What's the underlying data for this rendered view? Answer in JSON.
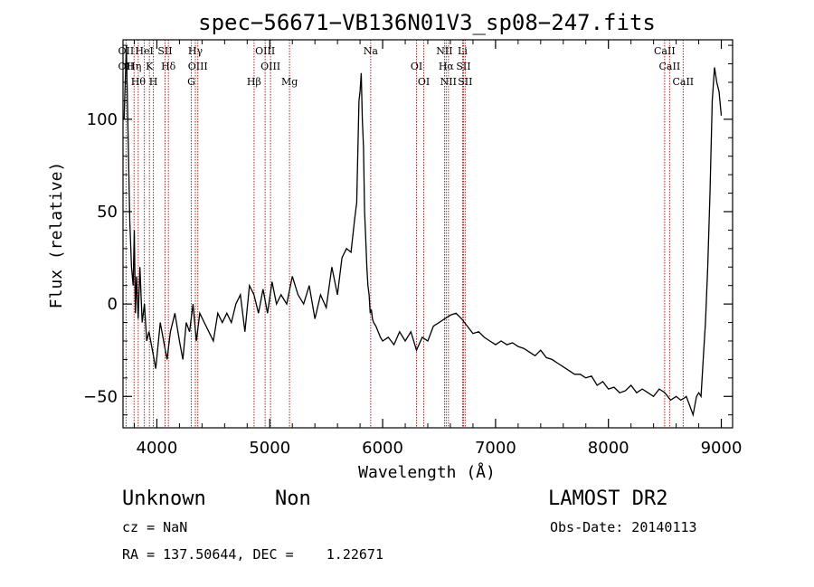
{
  "chart_data": {
    "type": "line",
    "title": "spec−56671−VB136N01V3_sp08−247.fits",
    "xlabel": "Wavelength (Å)",
    "ylabel": "Flux (relative)",
    "xlim": [
      3700,
      9100
    ],
    "ylim": [
      -67,
      143
    ],
    "xticks": [
      4000,
      5000,
      6000,
      7000,
      8000,
      9000
    ],
    "yticks": [
      -50,
      0,
      50,
      100
    ],
    "xticklabels": [
      "4000",
      "5000",
      "6000",
      "7000",
      "8000",
      "9000"
    ],
    "yticklabels": [
      "−50",
      "0",
      "50",
      "100"
    ],
    "grid": false,
    "series": [
      {
        "x": [
          3710,
          3730,
          3760,
          3775,
          3790,
          3800,
          3810,
          3820,
          3835,
          3850,
          3870,
          3890,
          3910,
          3930,
          3960,
          3990,
          4030,
          4060,
          4090,
          4120,
          4160,
          4200,
          4230,
          4260,
          4290,
          4320,
          4350,
          4380,
          4420,
          4460,
          4500,
          4540,
          4580,
          4620,
          4660,
          4700,
          4740,
          4780,
          4820,
          4860,
          4900,
          4940,
          4980,
          5020,
          5060,
          5100,
          5150,
          5200,
          5250,
          5300,
          5350,
          5400,
          5450,
          5500,
          5550,
          5600,
          5640,
          5680,
          5720,
          5750,
          5770,
          5790,
          5800,
          5810,
          5820,
          5830,
          5840,
          5850,
          5860,
          5870,
          5880,
          5890,
          5900,
          5910,
          5920,
          5940,
          5960,
          5980,
          6000,
          6050,
          6100,
          6150,
          6200,
          6250,
          6300,
          6350,
          6400,
          6450,
          6500,
          6550,
          6600,
          6650,
          6700,
          6750,
          6800,
          6850,
          6900,
          6950,
          7000,
          7050,
          7100,
          7150,
          7200,
          7250,
          7300,
          7350,
          7400,
          7450,
          7500,
          7550,
          7600,
          7650,
          7700,
          7750,
          7800,
          7850,
          7900,
          7950,
          8000,
          8050,
          8100,
          8150,
          8200,
          8250,
          8300,
          8350,
          8400,
          8450,
          8500,
          8550,
          8600,
          8640,
          8670,
          8690,
          8720,
          8750,
          8780,
          8800,
          8820,
          8840,
          8860,
          8880,
          8900,
          8920,
          8940,
          8960,
          8980,
          9000
        ],
        "y": [
          100,
          140,
          45,
          20,
          10,
          40,
          -5,
          15,
          -8,
          20,
          -10,
          0,
          -20,
          -15,
          -25,
          -35,
          -10,
          -20,
          -30,
          -15,
          -5,
          -20,
          -30,
          -10,
          -15,
          0,
          -20,
          -5,
          -10,
          -15,
          -20,
          -5,
          -10,
          -5,
          -10,
          0,
          5,
          -15,
          10,
          5,
          -5,
          8,
          -5,
          12,
          0,
          5,
          0,
          15,
          5,
          0,
          10,
          -8,
          5,
          -2,
          20,
          5,
          25,
          30,
          28,
          45,
          55,
          110,
          115,
          125,
          100,
          85,
          50,
          35,
          20,
          10,
          5,
          -5,
          -3,
          -8,
          -10,
          -12,
          -15,
          -18,
          -20,
          -18,
          -22,
          -15,
          -20,
          -15,
          -25,
          -18,
          -20,
          -12,
          -10,
          -8,
          -6,
          -5,
          -8,
          -12,
          -16,
          -15,
          -18,
          -20,
          -22,
          -20,
          -22,
          -21,
          -23,
          -24,
          -26,
          -28,
          -25,
          -29,
          -30,
          -32,
          -34,
          -36,
          -38,
          -38,
          -40,
          -39,
          -44,
          -42,
          -46,
          -45,
          -48,
          -47,
          -44,
          -48,
          -46,
          -48,
          -50,
          -46,
          -48,
          -52,
          -50,
          -52,
          -51,
          -50,
          -55,
          -60,
          -50,
          -48,
          -50,
          -30,
          -10,
          20,
          60,
          110,
          128,
          120,
          115,
          102
        ]
      }
    ],
    "lines": [
      {
        "x": 3727,
        "labels": [
          "OII",
          "OII"
        ],
        "dx": [
          0,
          0
        ]
      },
      {
        "x": 3798,
        "labels": [
          "Hη"
        ],
        "dx": [
          0
        ]
      },
      {
        "x": 3835,
        "labels": [
          "Hθ"
        ],
        "dx": [
          0
        ]
      },
      {
        "x": 3889,
        "labels": [
          "HeI"
        ],
        "dx": [
          0
        ]
      },
      {
        "x": 3934,
        "labels": [
          "K"
        ],
        "dx": [
          0
        ]
      },
      {
        "x": 3969,
        "labels": [
          "H"
        ],
        "dx": [
          0
        ]
      },
      {
        "x": 4072,
        "labels": [
          "SII"
        ],
        "dx": [
          0
        ]
      },
      {
        "x": 4102,
        "labels": [
          "Hδ"
        ],
        "dx": [
          0
        ]
      },
      {
        "x": 4305,
        "labels": [
          "G"
        ],
        "dx": [
          0
        ]
      },
      {
        "x": 4341,
        "labels": [
          "Hγ"
        ],
        "dx": [
          0
        ]
      },
      {
        "x": 4363,
        "labels": [
          "OIII"
        ],
        "dx": [
          0
        ]
      },
      {
        "x": 4861,
        "labels": [
          "Hβ"
        ],
        "dx": [
          0
        ]
      },
      {
        "x": 4959,
        "labels": [
          "OIII"
        ],
        "dx": [
          0
        ]
      },
      {
        "x": 5007,
        "labels": [
          "OIII"
        ],
        "dx": [
          0
        ]
      },
      {
        "x": 5175,
        "labels": [
          "Mg"
        ],
        "dx": [
          0
        ]
      },
      {
        "x": 5894,
        "labels": [
          "Na"
        ],
        "dx": [
          0
        ]
      },
      {
        "x": 6300,
        "labels": [
          "OI"
        ],
        "dx": [
          0
        ]
      },
      {
        "x": 6364,
        "labels": [
          "OI"
        ],
        "dx": [
          0
        ]
      },
      {
        "x": 6548,
        "labels": [
          "NII"
        ],
        "dx": [
          0
        ]
      },
      {
        "x": 6563,
        "labels": [
          "Hα"
        ],
        "dx": [
          0
        ]
      },
      {
        "x": 6583,
        "labels": [
          "NII"
        ],
        "dx": [
          0
        ]
      },
      {
        "x": 6708,
        "labels": [
          "Li"
        ],
        "dx": [
          0
        ]
      },
      {
        "x": 6716,
        "labels": [
          "SII"
        ],
        "dx": [
          0
        ]
      },
      {
        "x": 6731,
        "labels": [
          "SII"
        ],
        "dx": [
          0
        ]
      },
      {
        "x": 8498,
        "labels": [
          "CaII"
        ],
        "dx": [
          0
        ]
      },
      {
        "x": 8542,
        "labels": [
          "CaII"
        ],
        "dx": [
          0
        ]
      },
      {
        "x": 8662,
        "labels": [
          "CaII"
        ],
        "dx": [
          0
        ]
      }
    ]
  },
  "info": {
    "class": "Unknown",
    "subclass": "Non",
    "survey": "LAMOST DR2",
    "cz": "cz = NaN",
    "obs_date": "Obs-Date: 20140113",
    "coords": "RA = 137.50644, DEC =    1.22671"
  },
  "colors": {
    "spectrum": "#000000",
    "line_marker": "#b22222",
    "background": "#ffffff"
  }
}
